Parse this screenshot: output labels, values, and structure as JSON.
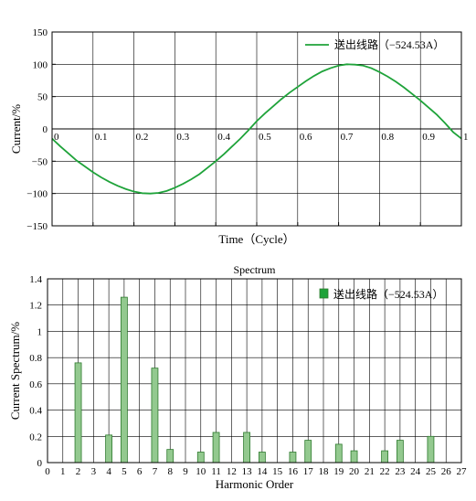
{
  "chart_data": [
    {
      "type": "line",
      "title": "",
      "xlabel": "Time（Cycle）",
      "ylabel": "Current/%",
      "xlim": [
        0,
        1
      ],
      "ylim": [
        -150,
        150
      ],
      "x_ticks": [
        "0",
        "0.1",
        "0.2",
        "0.3",
        "0.4",
        "0.5",
        "0.6",
        "0.7",
        "0.8",
        "0.9",
        "1"
      ],
      "y_ticks": [
        "150",
        "100",
        "50",
        "0",
        "−50",
        "−100",
        "−150"
      ],
      "grid": true,
      "legend_position": "top-right",
      "series": [
        {
          "name": "送出线路（−524.53A）",
          "color": "#1fa33a",
          "x": [
            0,
            0.02,
            0.04,
            0.06,
            0.08,
            0.1,
            0.12,
            0.14,
            0.16,
            0.18,
            0.2,
            0.22,
            0.24,
            0.26,
            0.28,
            0.3,
            0.32,
            0.34,
            0.36,
            0.38,
            0.4,
            0.42,
            0.44,
            0.46,
            0.48,
            0.5,
            0.52,
            0.54,
            0.56,
            0.58,
            0.6,
            0.62,
            0.64,
            0.66,
            0.68,
            0.7,
            0.72,
            0.74,
            0.76,
            0.78,
            0.8,
            0.82,
            0.84,
            0.86,
            0.88,
            0.9,
            0.92,
            0.94,
            0.96,
            0.98,
            1.0
          ],
          "values": [
            -15,
            -27,
            -38,
            -49,
            -58,
            -67,
            -75,
            -82,
            -88,
            -93,
            -97,
            -99.5,
            -100,
            -99,
            -96,
            -91,
            -85,
            -78,
            -70,
            -60,
            -50,
            -39,
            -27,
            -15,
            -2,
            12,
            24,
            35,
            46,
            56,
            65,
            74,
            82,
            89,
            94,
            98,
            100,
            99.5,
            98,
            94,
            88,
            81,
            73,
            64,
            54,
            44,
            33,
            22,
            9,
            -5,
            -15
          ]
        }
      ]
    },
    {
      "type": "bar",
      "title": "Spectrum",
      "xlabel": "Harmonic Order",
      "ylabel": "Current Spectrum/%",
      "xlim": [
        0,
        27
      ],
      "ylim": [
        0,
        1.4
      ],
      "y_ticks": [
        "0",
        "0.2",
        "0.4",
        "0.6",
        "0.8",
        "1",
        "1.2",
        "1.4"
      ],
      "grid": true,
      "legend_position": "top-right",
      "categories": [
        "0",
        "1",
        "2",
        "3",
        "4",
        "5",
        "6",
        "7",
        "8",
        "9",
        "10",
        "11",
        "12",
        "13",
        "14",
        "15",
        "16",
        "17",
        "18",
        "19",
        "20",
        "21",
        "22",
        "23",
        "24",
        "25",
        "26",
        "27"
      ],
      "series": [
        {
          "name": "送出线路（−524.53A）",
          "color": "#93c98f",
          "stroke": "#2d7a2d",
          "values": [
            0,
            0,
            0.76,
            0,
            0.21,
            1.26,
            0,
            0.72,
            0.1,
            0,
            0.08,
            0.23,
            0,
            0.23,
            0.08,
            0,
            0.08,
            0.17,
            0,
            0.14,
            0.09,
            0,
            0.09,
            0.17,
            0,
            0.2,
            0,
            0
          ]
        }
      ]
    }
  ]
}
